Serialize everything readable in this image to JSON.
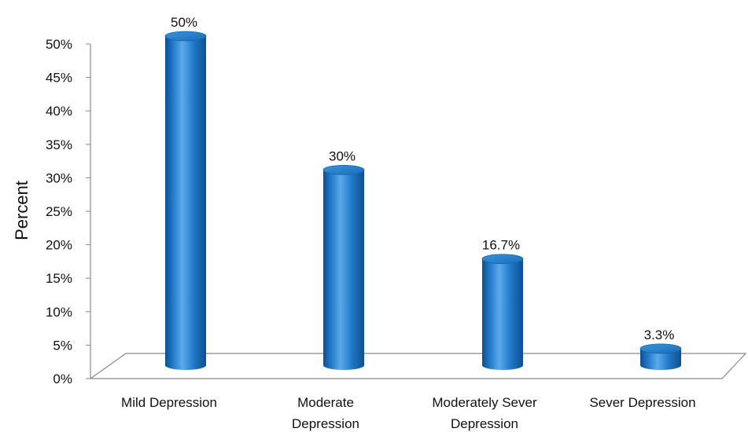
{
  "chart_data": {
    "type": "bar",
    "categories": [
      [
        "Mild Depression"
      ],
      [
        "Moderate",
        "Depression"
      ],
      [
        "Moderately Sever",
        "Depression"
      ],
      [
        "Sever Depression"
      ]
    ],
    "values": [
      50,
      30,
      16.7,
      3.3
    ],
    "data_labels": [
      "50%",
      "30%",
      "16.7%",
      "3.3%"
    ],
    "title": "",
    "xlabel": "",
    "ylabel": "Percent",
    "ylim": [
      0,
      50
    ],
    "y_ticks": [
      0,
      5,
      10,
      15,
      20,
      25,
      30,
      35,
      40,
      45,
      50
    ],
    "y_tick_labels": [
      "0%",
      "5%",
      "10%",
      "15%",
      "20%",
      "25%",
      "30%",
      "35%",
      "40%",
      "45%",
      "50%"
    ],
    "bar_style": "3d-cylinder",
    "grid": false,
    "legend": "none",
    "colors": {
      "bar_fill": "#1f78c8",
      "bar_dark": "#0d4f8f",
      "bar_light": "#5aaae8",
      "axis": "#7f7f7f"
    }
  }
}
